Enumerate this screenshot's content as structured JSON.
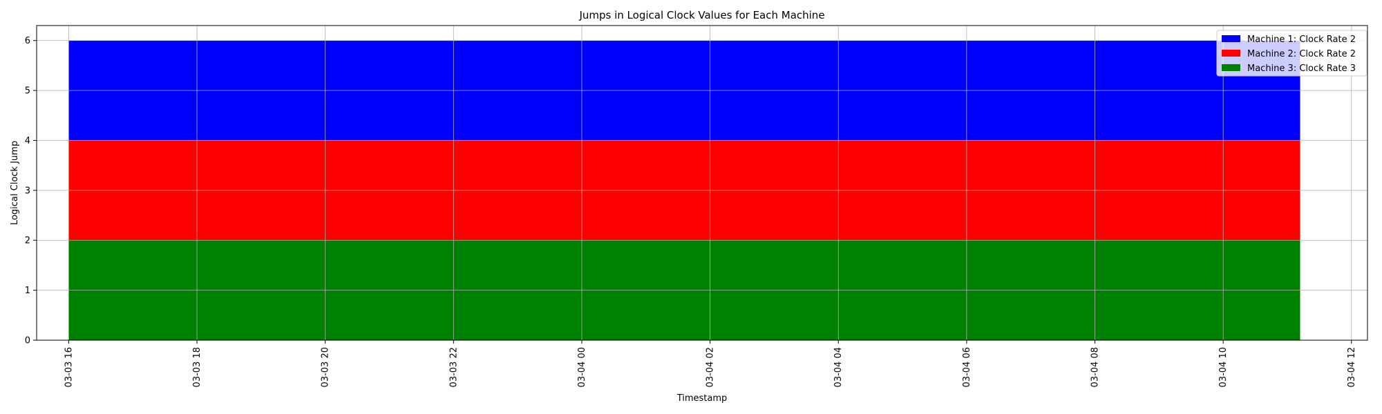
{
  "chart_data": {
    "type": "area",
    "stacked": true,
    "title": "Jumps in Logical Clock Values for Each Machine",
    "xlabel": "Timestamp",
    "ylabel": "Logical Clock Jump",
    "x_range": [
      "2025-03-03 16:00",
      "2025-03-04 11:12"
    ],
    "xlim": [
      "2025-03-03 15:30",
      "2025-03-04 12:15"
    ],
    "ylim": [
      0,
      6.3
    ],
    "x_ticks": [
      "03-03 16",
      "03-03 18",
      "03-03 20",
      "03-03 22",
      "03-04 00",
      "03-04 02",
      "03-04 04",
      "03-04 06",
      "03-04 08",
      "03-04 10",
      "03-04 12"
    ],
    "y_ticks": [
      0,
      1,
      2,
      3,
      4,
      5,
      6
    ],
    "grid": true,
    "legend_position": "top-right",
    "series": [
      {
        "name": "Machine 3: Clock Rate 3",
        "value": 2,
        "color": "#008000"
      },
      {
        "name": "Machine 2: Clock Rate 2",
        "value": 2,
        "color": "#ff0000"
      },
      {
        "name": "Machine 1: Clock Rate 2",
        "value": 2,
        "color": "#0000ff"
      }
    ],
    "legend_order": [
      "Machine 1: Clock Rate 2",
      "Machine 2: Clock Rate 2",
      "Machine 3: Clock Rate 3"
    ]
  }
}
